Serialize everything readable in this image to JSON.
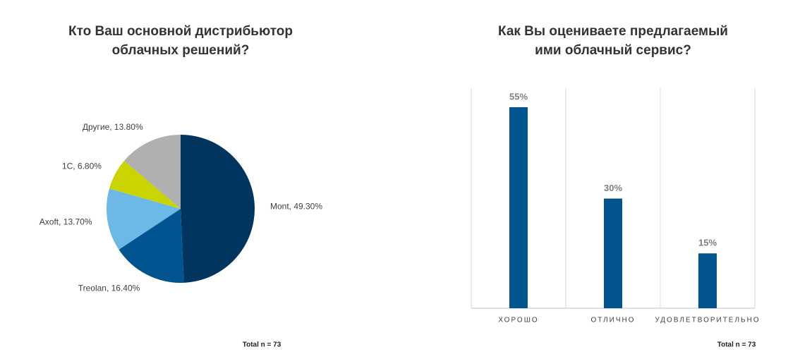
{
  "chart_data": [
    {
      "type": "pie",
      "title": [
        "Кто Ваш основной дистрибьютор",
        "облачных решений?"
      ],
      "values": [
        49.3,
        16.4,
        13.7,
        6.8,
        13.8
      ],
      "value_labels": [
        "Mont, 49.30%",
        "Treolan, 16.40%",
        "Axoft, 13.70%",
        "1C, 6.80%",
        "Другие, 13.80%"
      ],
      "colors": [
        "#003560",
        "#005490",
        "#6cb9e7",
        "#c9d400",
        "#b0b0b0"
      ],
      "note": "Total n = 73"
    },
    {
      "type": "bar",
      "title": [
        "Как Вы оцениваете предлагаемый",
        "ими облачный сервис?"
      ],
      "categories": [
        "ХОРОШО",
        "ОТЛИЧНО",
        "УДОВЛЕТВОРИТЕЛЬНО"
      ],
      "values": [
        55,
        30,
        15
      ],
      "value_labels": [
        "55%",
        "30%",
        "15%"
      ],
      "color": "#00558f",
      "grid": true,
      "note": "Total n = 73"
    }
  ]
}
